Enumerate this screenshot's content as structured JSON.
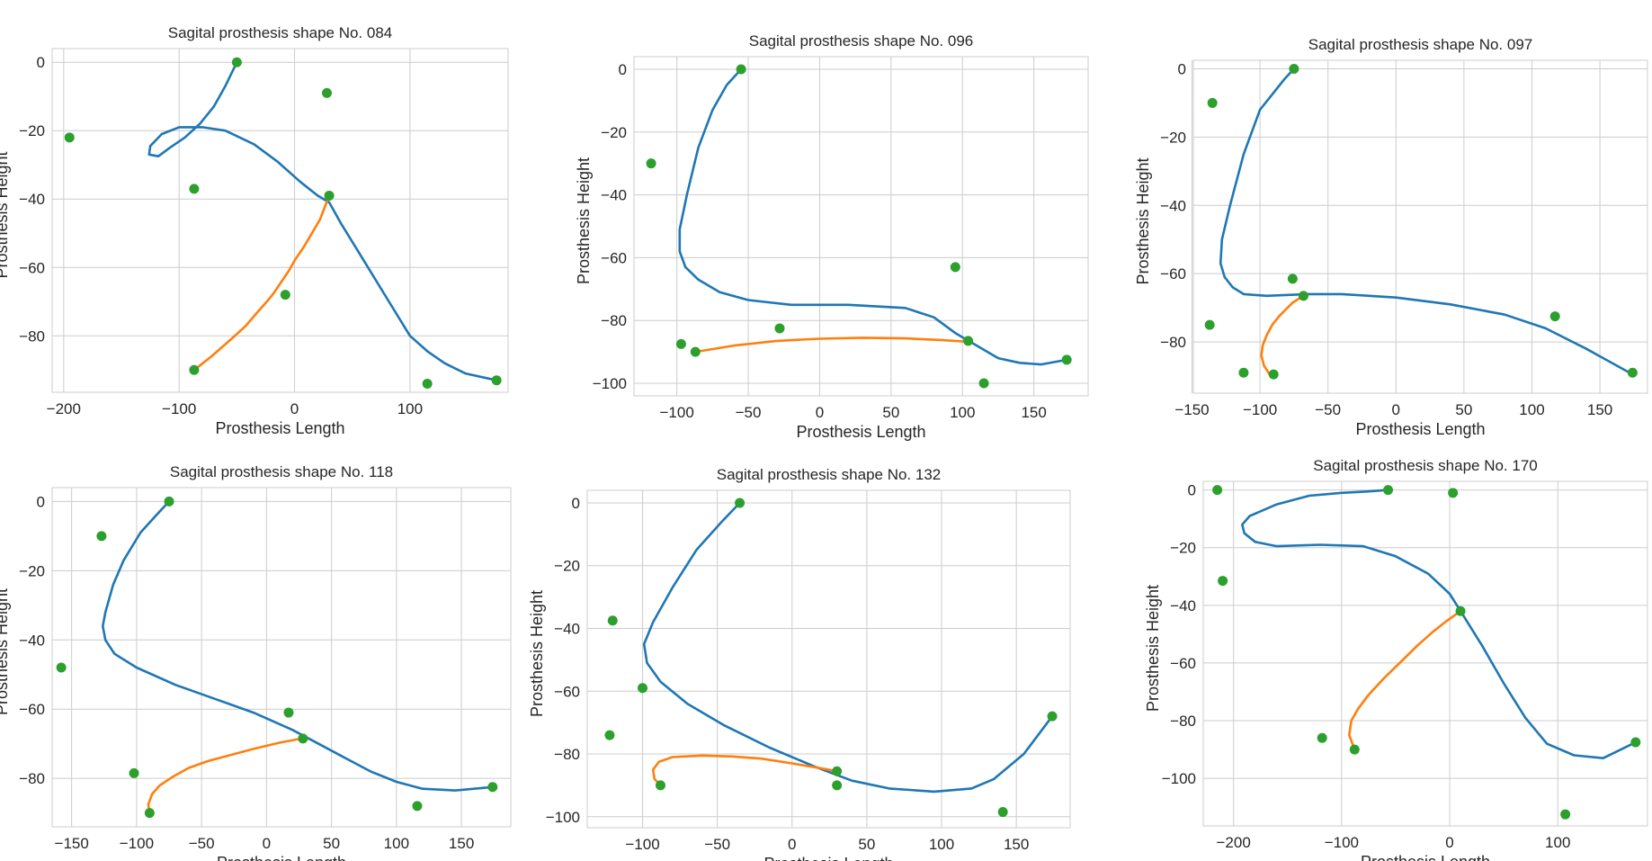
{
  "colors": {
    "spline": "#1f77b4",
    "segment": "#ff7f0e",
    "points": "#2ca02c",
    "grid": "#cccccc"
  },
  "chart_data": [
    {
      "type": "line",
      "title": "Sagital prosthesis shape No. 084",
      "xlabel": "Prosthesis Length",
      "ylabel": "Prosthesis Height",
      "xlim": [
        -210,
        185
      ],
      "ylim": [
        -96.5,
        4
      ],
      "xticks": [
        -200,
        -100,
        0,
        100
      ],
      "yticks": [
        0,
        -20,
        -40,
        -60,
        -80
      ],
      "grid": true,
      "series": [
        {
          "role": "spline",
          "color": "#1f77b4",
          "x": [
            -50,
            -60,
            -70,
            -82,
            -95,
            -108,
            -118,
            -126,
            -125,
            -115,
            -100,
            -80,
            -60,
            -35,
            -15,
            5,
            20,
            30,
            40,
            60,
            80,
            100,
            115,
            130,
            148,
            175
          ],
          "y": [
            0,
            -7,
            -13,
            -18,
            -22,
            -25,
            -27.5,
            -27,
            -24.5,
            -21,
            -19,
            -19,
            -20,
            -24,
            -29,
            -35,
            -39,
            -41,
            -47,
            -58,
            -69,
            -80,
            -84.5,
            -88,
            -91,
            -93
          ]
        },
        {
          "role": "segment",
          "color": "#ff7f0e",
          "x": [
            -87,
            -72,
            -55,
            -42,
            -32,
            -24,
            -18,
            -12,
            -5,
            0,
            8,
            15,
            22,
            26,
            30
          ],
          "y": [
            -90,
            -86,
            -81,
            -77,
            -73,
            -70,
            -67.5,
            -64.5,
            -61,
            -58,
            -54,
            -50,
            -46,
            -42.5,
            -39
          ]
        },
        {
          "role": "control-points",
          "color": "#2ca02c",
          "x": [
            -50,
            28,
            -195,
            -87,
            30,
            -8,
            -87,
            115,
            175
          ],
          "y": [
            0,
            -9,
            -22,
            -37,
            -39,
            -68,
            -90,
            -94,
            -93
          ]
        }
      ]
    },
    {
      "type": "line",
      "title": "Sagital prosthesis shape No. 096",
      "xlabel": "Prosthesis Length",
      "ylabel": "Prosthesis Height",
      "xlim": [
        -130,
        188
      ],
      "ylim": [
        -104,
        4
      ],
      "xticks": [
        -100,
        -50,
        0,
        50,
        100,
        150
      ],
      "yticks": [
        0,
        -20,
        -40,
        -60,
        -80,
        -100
      ],
      "grid": true,
      "series": [
        {
          "role": "spline",
          "color": "#1f77b4",
          "x": [
            -55,
            -65,
            -75,
            -85,
            -93,
            -98,
            -98,
            -94,
            -85,
            -70,
            -50,
            -20,
            20,
            60,
            80,
            95,
            110,
            125,
            140,
            155,
            173
          ],
          "y": [
            0,
            -5,
            -13,
            -25,
            -40,
            -51,
            -58,
            -63,
            -67,
            -71,
            -73.5,
            -75,
            -75,
            -76,
            -79,
            -84,
            -88,
            -92,
            -93.5,
            -94,
            -92.5
          ]
        },
        {
          "role": "segment",
          "color": "#ff7f0e",
          "x": [
            -87,
            -60,
            -30,
            0,
            30,
            60,
            85,
            105
          ],
          "y": [
            -90,
            -88,
            -86.5,
            -85.8,
            -85.5,
            -85.7,
            -86.2,
            -86.8
          ]
        },
        {
          "role": "control-points",
          "color": "#2ca02c",
          "x": [
            -55,
            -118,
            95,
            -97,
            -87,
            -28,
            104,
            115,
            173
          ],
          "y": [
            0,
            -30,
            -63,
            -87.5,
            -90,
            -82.5,
            -86.5,
            -100,
            -92.5
          ]
        }
      ]
    },
    {
      "type": "line",
      "title": "Sagital prosthesis shape No. 097",
      "xlabel": "Prosthesis Length",
      "ylabel": "Prosthesis Height",
      "xlim": [
        -149,
        185
      ],
      "ylim": [
        -95,
        2.5
      ],
      "xticks": [
        -150,
        -100,
        -50,
        0,
        50,
        100,
        150
      ],
      "yticks": [
        0,
        -20,
        -40,
        -60,
        -80
      ],
      "grid": true,
      "series": [
        {
          "role": "spline",
          "color": "#1f77b4",
          "x": [
            -75,
            -82,
            -90,
            -100,
            -112,
            -122,
            -128,
            -129,
            -126,
            -120,
            -112,
            -95,
            -65,
            -40,
            0,
            40,
            80,
            110,
            140,
            174
          ],
          "y": [
            0,
            -3,
            -7,
            -12,
            -25,
            -40,
            -50,
            -57,
            -61,
            -64,
            -66,
            -66.5,
            -66,
            -66,
            -67,
            -69,
            -72,
            -76,
            -82,
            -89.5
          ]
        },
        {
          "role": "segment",
          "color": "#ff7f0e",
          "x": [
            -93,
            -97,
            -99,
            -98,
            -95,
            -91,
            -86,
            -81,
            -76,
            -70,
            -68
          ],
          "y": [
            -89.5,
            -87,
            -84,
            -81,
            -78,
            -75,
            -72.5,
            -70.5,
            -68.5,
            -67,
            -66.5
          ]
        },
        {
          "role": "control-points",
          "color": "#2ca02c",
          "x": [
            -75,
            -135,
            -76,
            -68,
            -137,
            -112,
            -90,
            117,
            174
          ],
          "y": [
            0,
            -10,
            -61.5,
            -66.5,
            -75,
            -89,
            -89.5,
            -72.5,
            -89
          ]
        }
      ]
    },
    {
      "type": "line",
      "title": "Sagital prosthesis shape No. 118",
      "xlabel": "Prosthesis Length",
      "ylabel": "Prosthesis Height",
      "xlim": [
        -165,
        188
      ],
      "ylim": [
        -94,
        4
      ],
      "xticks": [
        -150,
        -100,
        -50,
        0,
        50,
        100,
        150
      ],
      "yticks": [
        0,
        -20,
        -40,
        -60,
        -80
      ],
      "grid": true,
      "series": [
        {
          "role": "spline",
          "color": "#1f77b4",
          "x": [
            -75,
            -85,
            -97,
            -110,
            -118,
            -124,
            -126,
            -124,
            -117,
            -100,
            -70,
            -40,
            -10,
            20,
            40,
            60,
            80,
            100,
            120,
            145,
            174
          ],
          "y": [
            0,
            -4,
            -9,
            -17,
            -24,
            -32,
            -36,
            -40,
            -44,
            -48,
            -53,
            -57,
            -61,
            -66,
            -70,
            -74,
            -78,
            -81,
            -83,
            -83.5,
            -82.5
          ]
        },
        {
          "role": "segment",
          "color": "#ff7f0e",
          "x": [
            -90,
            -91,
            -88,
            -82,
            -72,
            -60,
            -45,
            -30,
            -10,
            10,
            27
          ],
          "y": [
            -90,
            -87.5,
            -84.5,
            -82,
            -79.5,
            -77,
            -75,
            -73.5,
            -71.5,
            -69.7,
            -68.5
          ]
        },
        {
          "role": "control-points",
          "color": "#2ca02c",
          "x": [
            -75,
            -127,
            -158,
            17,
            28,
            -102,
            -90,
            116,
            174
          ],
          "y": [
            0,
            -10,
            -48,
            -61,
            -68.5,
            -78.5,
            -90,
            -88,
            -82.5
          ]
        }
      ]
    },
    {
      "type": "line",
      "title": "Sagital prosthesis shape No. 132",
      "xlabel": "Prosthesis Length",
      "ylabel": "Prosthesis Height",
      "xlim": [
        -137,
        186
      ],
      "ylim": [
        -103.5,
        4
      ],
      "xticks": [
        -100,
        -50,
        0,
        50,
        100,
        150
      ],
      "yticks": [
        0,
        -20,
        -40,
        -60,
        -80,
        -100
      ],
      "grid": true,
      "series": [
        {
          "role": "spline",
          "color": "#1f77b4",
          "x": [
            -35,
            -47,
            -64,
            -80,
            -93,
            -99,
            -97,
            -88,
            -70,
            -45,
            -15,
            15,
            40,
            65,
            95,
            120,
            135,
            155,
            174
          ],
          "y": [
            0,
            -6,
            -15,
            -27,
            -38,
            -45,
            -51,
            -57,
            -64,
            -71,
            -78,
            -84,
            -88.5,
            -91,
            -92,
            -91,
            -88,
            -80,
            -68
          ]
        },
        {
          "role": "segment",
          "color": "#ff7f0e",
          "x": [
            -88,
            -92,
            -93,
            -89,
            -80,
            -60,
            -40,
            -20,
            0,
            15,
            30
          ],
          "y": [
            -90,
            -88,
            -85,
            -82.5,
            -81,
            -80.5,
            -80.8,
            -81.5,
            -83,
            -84.2,
            -85.5
          ]
        },
        {
          "role": "control-points",
          "color": "#2ca02c",
          "x": [
            -35,
            -120,
            -100,
            -122,
            30,
            30,
            -88,
            141,
            174
          ],
          "y": [
            0,
            -37.5,
            -59,
            -74,
            -85.5,
            -90,
            -90,
            -98.5,
            -68
          ]
        }
      ]
    },
    {
      "type": "line",
      "title": "Sagital prosthesis shape No. 170",
      "xlabel": "Prosthesis Length",
      "ylabel": "Prosthesis Height",
      "xlim": [
        -228,
        183
      ],
      "ylim": [
        -116.5,
        3
      ],
      "xticks": [
        -200,
        -100,
        0,
        100
      ],
      "yticks": [
        0,
        -20,
        -40,
        -60,
        -80,
        -100
      ],
      "grid": true,
      "series": [
        {
          "role": "spline",
          "color": "#1f77b4",
          "x": [
            -57,
            -75,
            -100,
            -130,
            -160,
            -185,
            -192,
            -190,
            -180,
            -160,
            -120,
            -80,
            -50,
            -20,
            0,
            10,
            30,
            50,
            70,
            90,
            115,
            142,
            172
          ],
          "y": [
            0,
            -0.5,
            -1,
            -2,
            -5,
            -9,
            -12,
            -15,
            -18,
            -19.5,
            -19,
            -19.5,
            -23,
            -29,
            -36,
            -42,
            -54,
            -67,
            -79,
            -88,
            -92,
            -93,
            -87.5
          ]
        },
        {
          "role": "segment",
          "color": "#ff7f0e",
          "x": [
            -88,
            -93,
            -91,
            -85,
            -75,
            -60,
            -45,
            -30,
            -15,
            -3,
            10
          ],
          "y": [
            -90,
            -85,
            -80,
            -76,
            -71,
            -65,
            -59.5,
            -54,
            -49,
            -45.5,
            -42
          ]
        },
        {
          "role": "control-points",
          "color": "#2ca02c",
          "x": [
            -215,
            -57,
            3,
            -210,
            10,
            -118,
            -88,
            107,
            172
          ],
          "y": [
            0,
            0,
            -1,
            -31.5,
            -42,
            -86,
            -90,
            -112.5,
            -87.5
          ]
        }
      ]
    }
  ]
}
